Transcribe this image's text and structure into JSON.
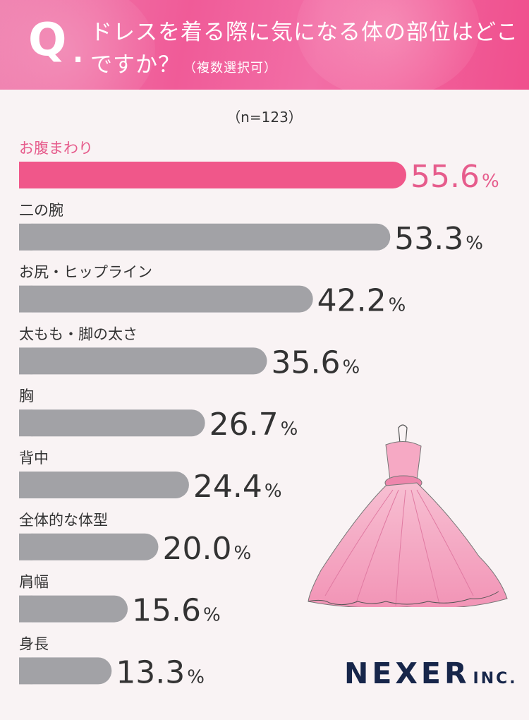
{
  "header": {
    "q_mark": "Q",
    "q_dot": ".",
    "question_line1": "ドレスを着る際に気になる体の部位はどこ",
    "question_line2": "ですか？",
    "question_note": "（複数選択可）"
  },
  "sample_size": "（n=123）",
  "colors": {
    "highlight": "#f0578a",
    "bar": "#a2a2a6",
    "highlight_text": "#e65c8c",
    "header_pink": "#f05b98",
    "logo": "#17264a"
  },
  "chart_data": {
    "type": "bar",
    "orientation": "horizontal",
    "unit": "%",
    "categories": [
      "お腹まわり",
      "二の腕",
      "お尻・ヒップライン",
      "太もも・脚の太さ",
      "胸",
      "背中",
      "全体的な体型",
      "肩幅",
      "身長"
    ],
    "values": [
      55.6,
      53.3,
      42.2,
      35.6,
      26.7,
      24.4,
      20.0,
      15.6,
      13.3
    ],
    "value_labels": [
      "55.6",
      "53.3",
      "42.2",
      "35.6",
      "26.7",
      "24.4",
      "20.0",
      "15.6",
      "13.3"
    ],
    "highlight_index": 0,
    "xlim": [
      0,
      100
    ],
    "grid": false,
    "legend": "none"
  },
  "decoration": {
    "illustration": "pink-ball-gown-dress"
  },
  "logo": {
    "main": "NEXER",
    "sub": "INC."
  }
}
